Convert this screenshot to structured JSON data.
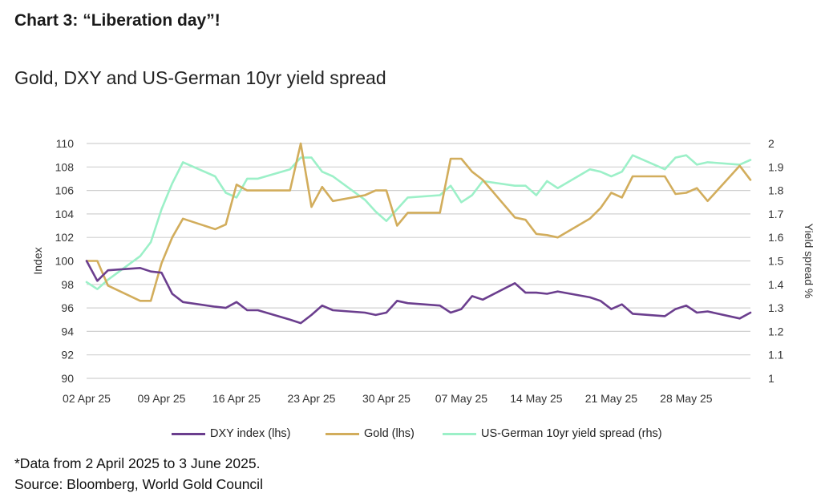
{
  "header": {
    "prefix": "Chart 3",
    "title_text": "“Liberation day”!",
    "subtitle": "Gold, DXY and US-German 10yr yield spread"
  },
  "footnotes": {
    "data_note": "*Data from 2 April 2025 to 3 June 2025.",
    "source": "Source: Bloomberg, World Gold Council"
  },
  "colors": {
    "dxy": "#6b3e8e",
    "gold": "#d2ad5c",
    "spread": "#9cf0c8",
    "grid": "#d0d0d0"
  },
  "chart_data": {
    "type": "line",
    "xlabel": "",
    "ylabel": "Index",
    "y2label": "Yield spread %",
    "ylim": [
      90,
      110
    ],
    "y2lim": [
      1,
      2
    ],
    "yticks": [
      "90",
      "92",
      "94",
      "96",
      "98",
      "100",
      "102",
      "104",
      "106",
      "108",
      "110"
    ],
    "y2ticks": [
      "1",
      "1.1",
      "1.2",
      "1.3",
      "1.4",
      "1.5",
      "1.6",
      "1.7",
      "1.8",
      "1.9",
      "2"
    ],
    "x_tick_labels": [
      "02 Apr 25",
      "09 Apr 25",
      "16 Apr 25",
      "23 Apr 25",
      "30 Apr 25",
      "07 May 25",
      "14 May 25",
      "21 May 25",
      "28 May 25"
    ],
    "xlim": [
      "2025-04-02",
      "2025-06-03"
    ],
    "grid": true,
    "legend_position": "bottom",
    "series": [
      {
        "name": "DXY index (lhs)",
        "axis": "left",
        "points": [
          [
            "2025-04-02",
            100.0
          ],
          [
            "2025-04-03",
            98.3
          ],
          [
            "2025-04-04",
            99.2
          ],
          [
            "2025-04-07",
            99.4
          ],
          [
            "2025-04-08",
            99.1
          ],
          [
            "2025-04-09",
            99.0
          ],
          [
            "2025-04-10",
            97.2
          ],
          [
            "2025-04-11",
            96.5
          ],
          [
            "2025-04-14",
            96.1
          ],
          [
            "2025-04-15",
            96.0
          ],
          [
            "2025-04-16",
            96.5
          ],
          [
            "2025-04-17",
            95.8
          ],
          [
            "2025-04-18",
            95.8
          ],
          [
            "2025-04-21",
            95.0
          ],
          [
            "2025-04-22",
            94.7
          ],
          [
            "2025-04-23",
            95.4
          ],
          [
            "2025-04-24",
            96.2
          ],
          [
            "2025-04-25",
            95.8
          ],
          [
            "2025-04-28",
            95.6
          ],
          [
            "2025-04-29",
            95.4
          ],
          [
            "2025-04-30",
            95.6
          ],
          [
            "2025-05-01",
            96.6
          ],
          [
            "2025-05-02",
            96.4
          ],
          [
            "2025-05-05",
            96.2
          ],
          [
            "2025-05-06",
            95.6
          ],
          [
            "2025-05-07",
            95.9
          ],
          [
            "2025-05-08",
            97.0
          ],
          [
            "2025-05-09",
            96.7
          ],
          [
            "2025-05-12",
            98.1
          ],
          [
            "2025-05-13",
            97.3
          ],
          [
            "2025-05-14",
            97.3
          ],
          [
            "2025-05-15",
            97.2
          ],
          [
            "2025-05-16",
            97.4
          ],
          [
            "2025-05-19",
            96.9
          ],
          [
            "2025-05-20",
            96.6
          ],
          [
            "2025-05-21",
            95.9
          ],
          [
            "2025-05-22",
            96.3
          ],
          [
            "2025-05-23",
            95.5
          ],
          [
            "2025-05-26",
            95.3
          ],
          [
            "2025-05-27",
            95.9
          ],
          [
            "2025-05-28",
            96.2
          ],
          [
            "2025-05-29",
            95.6
          ],
          [
            "2025-05-30",
            95.7
          ],
          [
            "2025-06-02",
            95.1
          ],
          [
            "2025-06-03",
            95.6
          ]
        ]
      },
      {
        "name": "Gold (lhs)",
        "axis": "left",
        "points": [
          [
            "2025-04-02",
            100.0
          ],
          [
            "2025-04-03",
            100.0
          ],
          [
            "2025-04-04",
            97.9
          ],
          [
            "2025-04-07",
            96.6
          ],
          [
            "2025-04-08",
            96.6
          ],
          [
            "2025-04-09",
            99.8
          ],
          [
            "2025-04-10",
            102.0
          ],
          [
            "2025-04-11",
            103.6
          ],
          [
            "2025-04-14",
            102.7
          ],
          [
            "2025-04-15",
            103.1
          ],
          [
            "2025-04-16",
            106.5
          ],
          [
            "2025-04-17",
            106.0
          ],
          [
            "2025-04-21",
            106.0
          ],
          [
            "2025-04-22",
            110.0
          ],
          [
            "2025-04-23",
            104.6
          ],
          [
            "2025-04-24",
            106.3
          ],
          [
            "2025-04-25",
            105.1
          ],
          [
            "2025-04-28",
            105.6
          ],
          [
            "2025-04-29",
            106.0
          ],
          [
            "2025-04-30",
            106.0
          ],
          [
            "2025-05-01",
            103.0
          ],
          [
            "2025-05-02",
            104.1
          ],
          [
            "2025-05-05",
            104.1
          ],
          [
            "2025-05-06",
            108.7
          ],
          [
            "2025-05-07",
            108.7
          ],
          [
            "2025-05-08",
            107.6
          ],
          [
            "2025-05-09",
            106.9
          ],
          [
            "2025-05-12",
            103.7
          ],
          [
            "2025-05-13",
            103.5
          ],
          [
            "2025-05-14",
            102.3
          ],
          [
            "2025-05-15",
            102.2
          ],
          [
            "2025-05-16",
            102.0
          ],
          [
            "2025-05-19",
            103.6
          ],
          [
            "2025-05-20",
            104.5
          ],
          [
            "2025-05-21",
            105.8
          ],
          [
            "2025-05-22",
            105.4
          ],
          [
            "2025-05-23",
            107.2
          ],
          [
            "2025-05-26",
            107.2
          ],
          [
            "2025-05-27",
            105.7
          ],
          [
            "2025-05-28",
            105.8
          ],
          [
            "2025-05-29",
            106.2
          ],
          [
            "2025-05-30",
            105.1
          ],
          [
            "2025-06-02",
            108.1
          ],
          [
            "2025-06-03",
            106.9
          ]
        ]
      },
      {
        "name": "US-German 10yr yield spread (rhs)",
        "axis": "right",
        "points": [
          [
            "2025-04-02",
            1.41
          ],
          [
            "2025-04-03",
            1.38
          ],
          [
            "2025-04-04",
            1.42
          ],
          [
            "2025-04-07",
            1.52
          ],
          [
            "2025-04-08",
            1.58
          ],
          [
            "2025-04-09",
            1.72
          ],
          [
            "2025-04-10",
            1.83
          ],
          [
            "2025-04-11",
            1.92
          ],
          [
            "2025-04-14",
            1.86
          ],
          [
            "2025-04-15",
            1.79
          ],
          [
            "2025-04-16",
            1.77
          ],
          [
            "2025-04-17",
            1.85
          ],
          [
            "2025-04-18",
            1.85
          ],
          [
            "2025-04-21",
            1.89
          ],
          [
            "2025-04-22",
            1.94
          ],
          [
            "2025-04-23",
            1.94
          ],
          [
            "2025-04-24",
            1.88
          ],
          [
            "2025-04-25",
            1.86
          ],
          [
            "2025-04-28",
            1.76
          ],
          [
            "2025-04-29",
            1.71
          ],
          [
            "2025-04-30",
            1.67
          ],
          [
            "2025-05-01",
            1.72
          ],
          [
            "2025-05-02",
            1.77
          ],
          [
            "2025-05-05",
            1.78
          ],
          [
            "2025-05-06",
            1.82
          ],
          [
            "2025-05-07",
            1.75
          ],
          [
            "2025-05-08",
            1.78
          ],
          [
            "2025-05-09",
            1.84
          ],
          [
            "2025-05-12",
            1.82
          ],
          [
            "2025-05-13",
            1.82
          ],
          [
            "2025-05-14",
            1.78
          ],
          [
            "2025-05-15",
            1.84
          ],
          [
            "2025-05-16",
            1.81
          ],
          [
            "2025-05-19",
            1.89
          ],
          [
            "2025-05-20",
            1.88
          ],
          [
            "2025-05-21",
            1.86
          ],
          [
            "2025-05-22",
            1.88
          ],
          [
            "2025-05-23",
            1.95
          ],
          [
            "2025-05-26",
            1.89
          ],
          [
            "2025-05-27",
            1.94
          ],
          [
            "2025-05-28",
            1.95
          ],
          [
            "2025-05-29",
            1.91
          ],
          [
            "2025-05-30",
            1.92
          ],
          [
            "2025-06-02",
            1.91
          ],
          [
            "2025-06-03",
            1.93
          ]
        ]
      }
    ]
  }
}
